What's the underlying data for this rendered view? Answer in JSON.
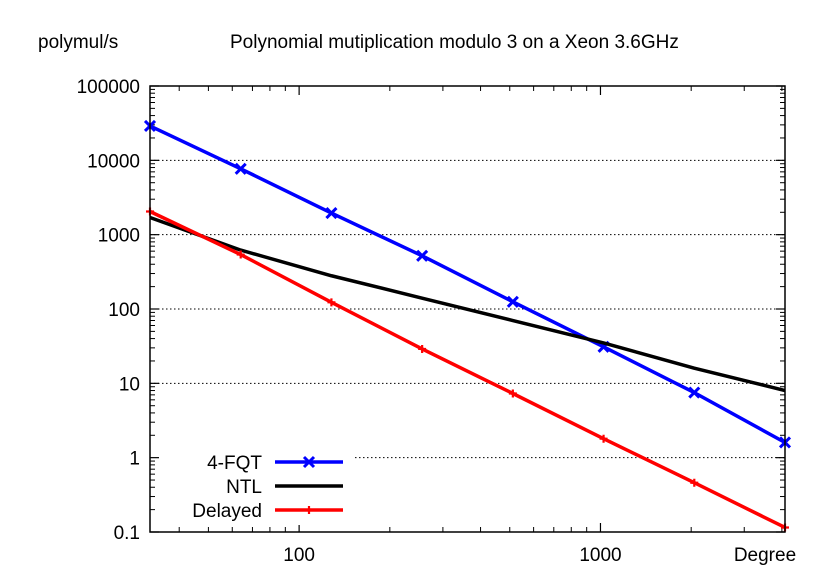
{
  "chart_data": {
    "type": "line",
    "title": "Polynomial mutiplication modulo 3 on a Xeon 3.6GHz",
    "ylabel": "polymul/s",
    "xlabel": "Degree",
    "x_scale": "log",
    "y_scale": "log",
    "xlim": [
      32,
      4096
    ],
    "ylim": [
      0.1,
      100000
    ],
    "x_ticks": [
      {
        "value": 100,
        "label": "100"
      },
      {
        "value": 1000,
        "label": "1000"
      }
    ],
    "y_ticks": [
      {
        "value": 0.1,
        "label": "0.1"
      },
      {
        "value": 1,
        "label": "1"
      },
      {
        "value": 10,
        "label": "10"
      },
      {
        "value": 100,
        "label": "100"
      },
      {
        "value": 1000,
        "label": "1000"
      },
      {
        "value": 10000,
        "label": "10000"
      },
      {
        "value": 100000,
        "label": "100000"
      }
    ],
    "grid": "horizontal-dotted",
    "legend_position": "bottom-left",
    "series": [
      {
        "name": "4-FQT",
        "color": "#0000ff",
        "marker": "x",
        "x": [
          32,
          64,
          128,
          256,
          512,
          1024,
          2048,
          4096
        ],
        "y": [
          29000,
          7700,
          1950,
          520,
          125,
          31,
          7.5,
          1.6
        ]
      },
      {
        "name": "NTL",
        "color": "#000000",
        "marker": "none",
        "x": [
          32,
          64,
          128,
          256,
          512,
          1024,
          2048,
          4096
        ],
        "y": [
          1700,
          620,
          280,
          140,
          70,
          35,
          16,
          8
        ]
      },
      {
        "name": "Delayed",
        "color": "#ff0000",
        "marker": "plus",
        "x": [
          32,
          64,
          128,
          256,
          512,
          1024,
          2048,
          4096
        ],
        "y": [
          2050,
          540,
          123,
          29,
          7.3,
          1.8,
          0.46,
          0.115
        ]
      }
    ]
  }
}
